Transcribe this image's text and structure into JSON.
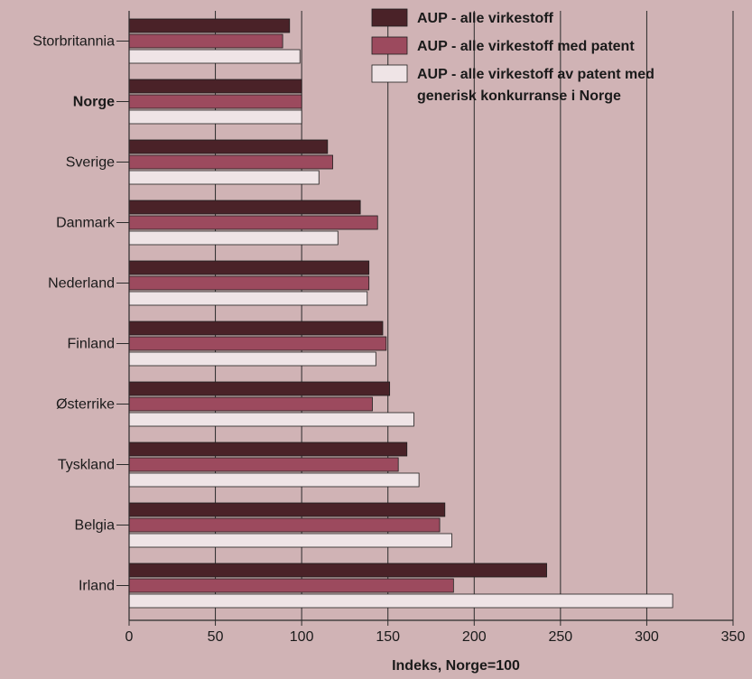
{
  "chart_data": {
    "type": "bar",
    "orientation": "horizontal",
    "title": "",
    "xlabel": "Indeks, Norge=100",
    "ylabel": "",
    "xlim": [
      0,
      350
    ],
    "xticks": [
      0,
      50,
      100,
      150,
      200,
      250,
      300,
      350
    ],
    "grid": "vertical lines at x ticks",
    "legend_position": "top-right",
    "categories": [
      "Storbritannia",
      "Norge",
      "Sverige",
      "Danmark",
      "Nederland",
      "Finland",
      "Østerrike",
      "Tyskland",
      "Belgia",
      "Irland"
    ],
    "highlight_category": "Norge",
    "series": [
      {
        "name": "AUP - alle virkestoff",
        "color": "#4a2228",
        "values": [
          93,
          100,
          115,
          134,
          139,
          147,
          151,
          161,
          183,
          242
        ]
      },
      {
        "name": "AUP - alle virkestoff med patent",
        "color": "#9c4a5e",
        "values": [
          89,
          100,
          118,
          144,
          139,
          149,
          141,
          156,
          180,
          188
        ]
      },
      {
        "name": "AUP - alle virkestoff av patent med generisk konkurranse i Norge",
        "color": "#efe4e6",
        "values": [
          99,
          100,
          110,
          121,
          138,
          143,
          165,
          168,
          187,
          315
        ]
      }
    ],
    "legend_lines": [
      [
        "AUP - alle virkestoff"
      ],
      [
        "AUP - alle virkestoff med patent"
      ],
      [
        "AUP - alle virkestoff av patent med",
        "generisk konkurranse i Norge"
      ]
    ]
  }
}
